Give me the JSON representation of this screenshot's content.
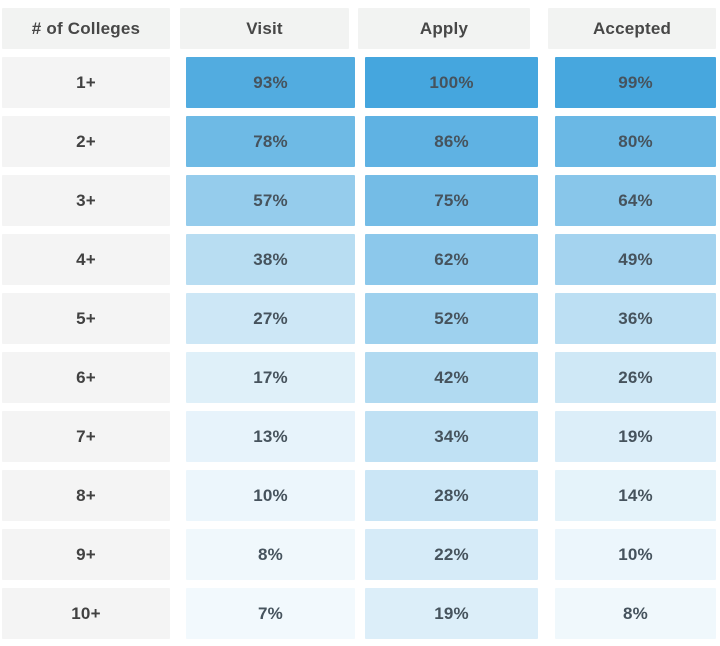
{
  "chart_data": {
    "type": "heatmap",
    "title": "",
    "row_label_header": "# of Colleges",
    "columns": [
      "Visit",
      "Apply",
      "Accepted"
    ],
    "row_labels": [
      "1+",
      "2+",
      "3+",
      "4+",
      "5+",
      "6+",
      "7+",
      "8+",
      "9+",
      "10+"
    ],
    "series": [
      {
        "name": "Visit",
        "values": [
          93,
          78,
          57,
          38,
          27,
          17,
          13,
          10,
          8,
          7
        ]
      },
      {
        "name": "Apply",
        "values": [
          100,
          86,
          75,
          62,
          52,
          42,
          34,
          28,
          22,
          19
        ]
      },
      {
        "name": "Accepted",
        "values": [
          99,
          80,
          64,
          49,
          36,
          26,
          19,
          14,
          10,
          8
        ]
      }
    ],
    "value_suffix": "%",
    "color_scale": {
      "min": 0,
      "max": 100,
      "min_color": "#FFFFFF",
      "max_color": "#45A6DE"
    },
    "legend": false,
    "grid": false
  },
  "styles": {
    "background": "#FFFFFF",
    "header_bg": "#F2F3F2",
    "row_label_bg": "#F4F4F4",
    "header_text_color": "#474747",
    "row_label_text_color": "#414141",
    "value_text_color": "#46535D"
  }
}
